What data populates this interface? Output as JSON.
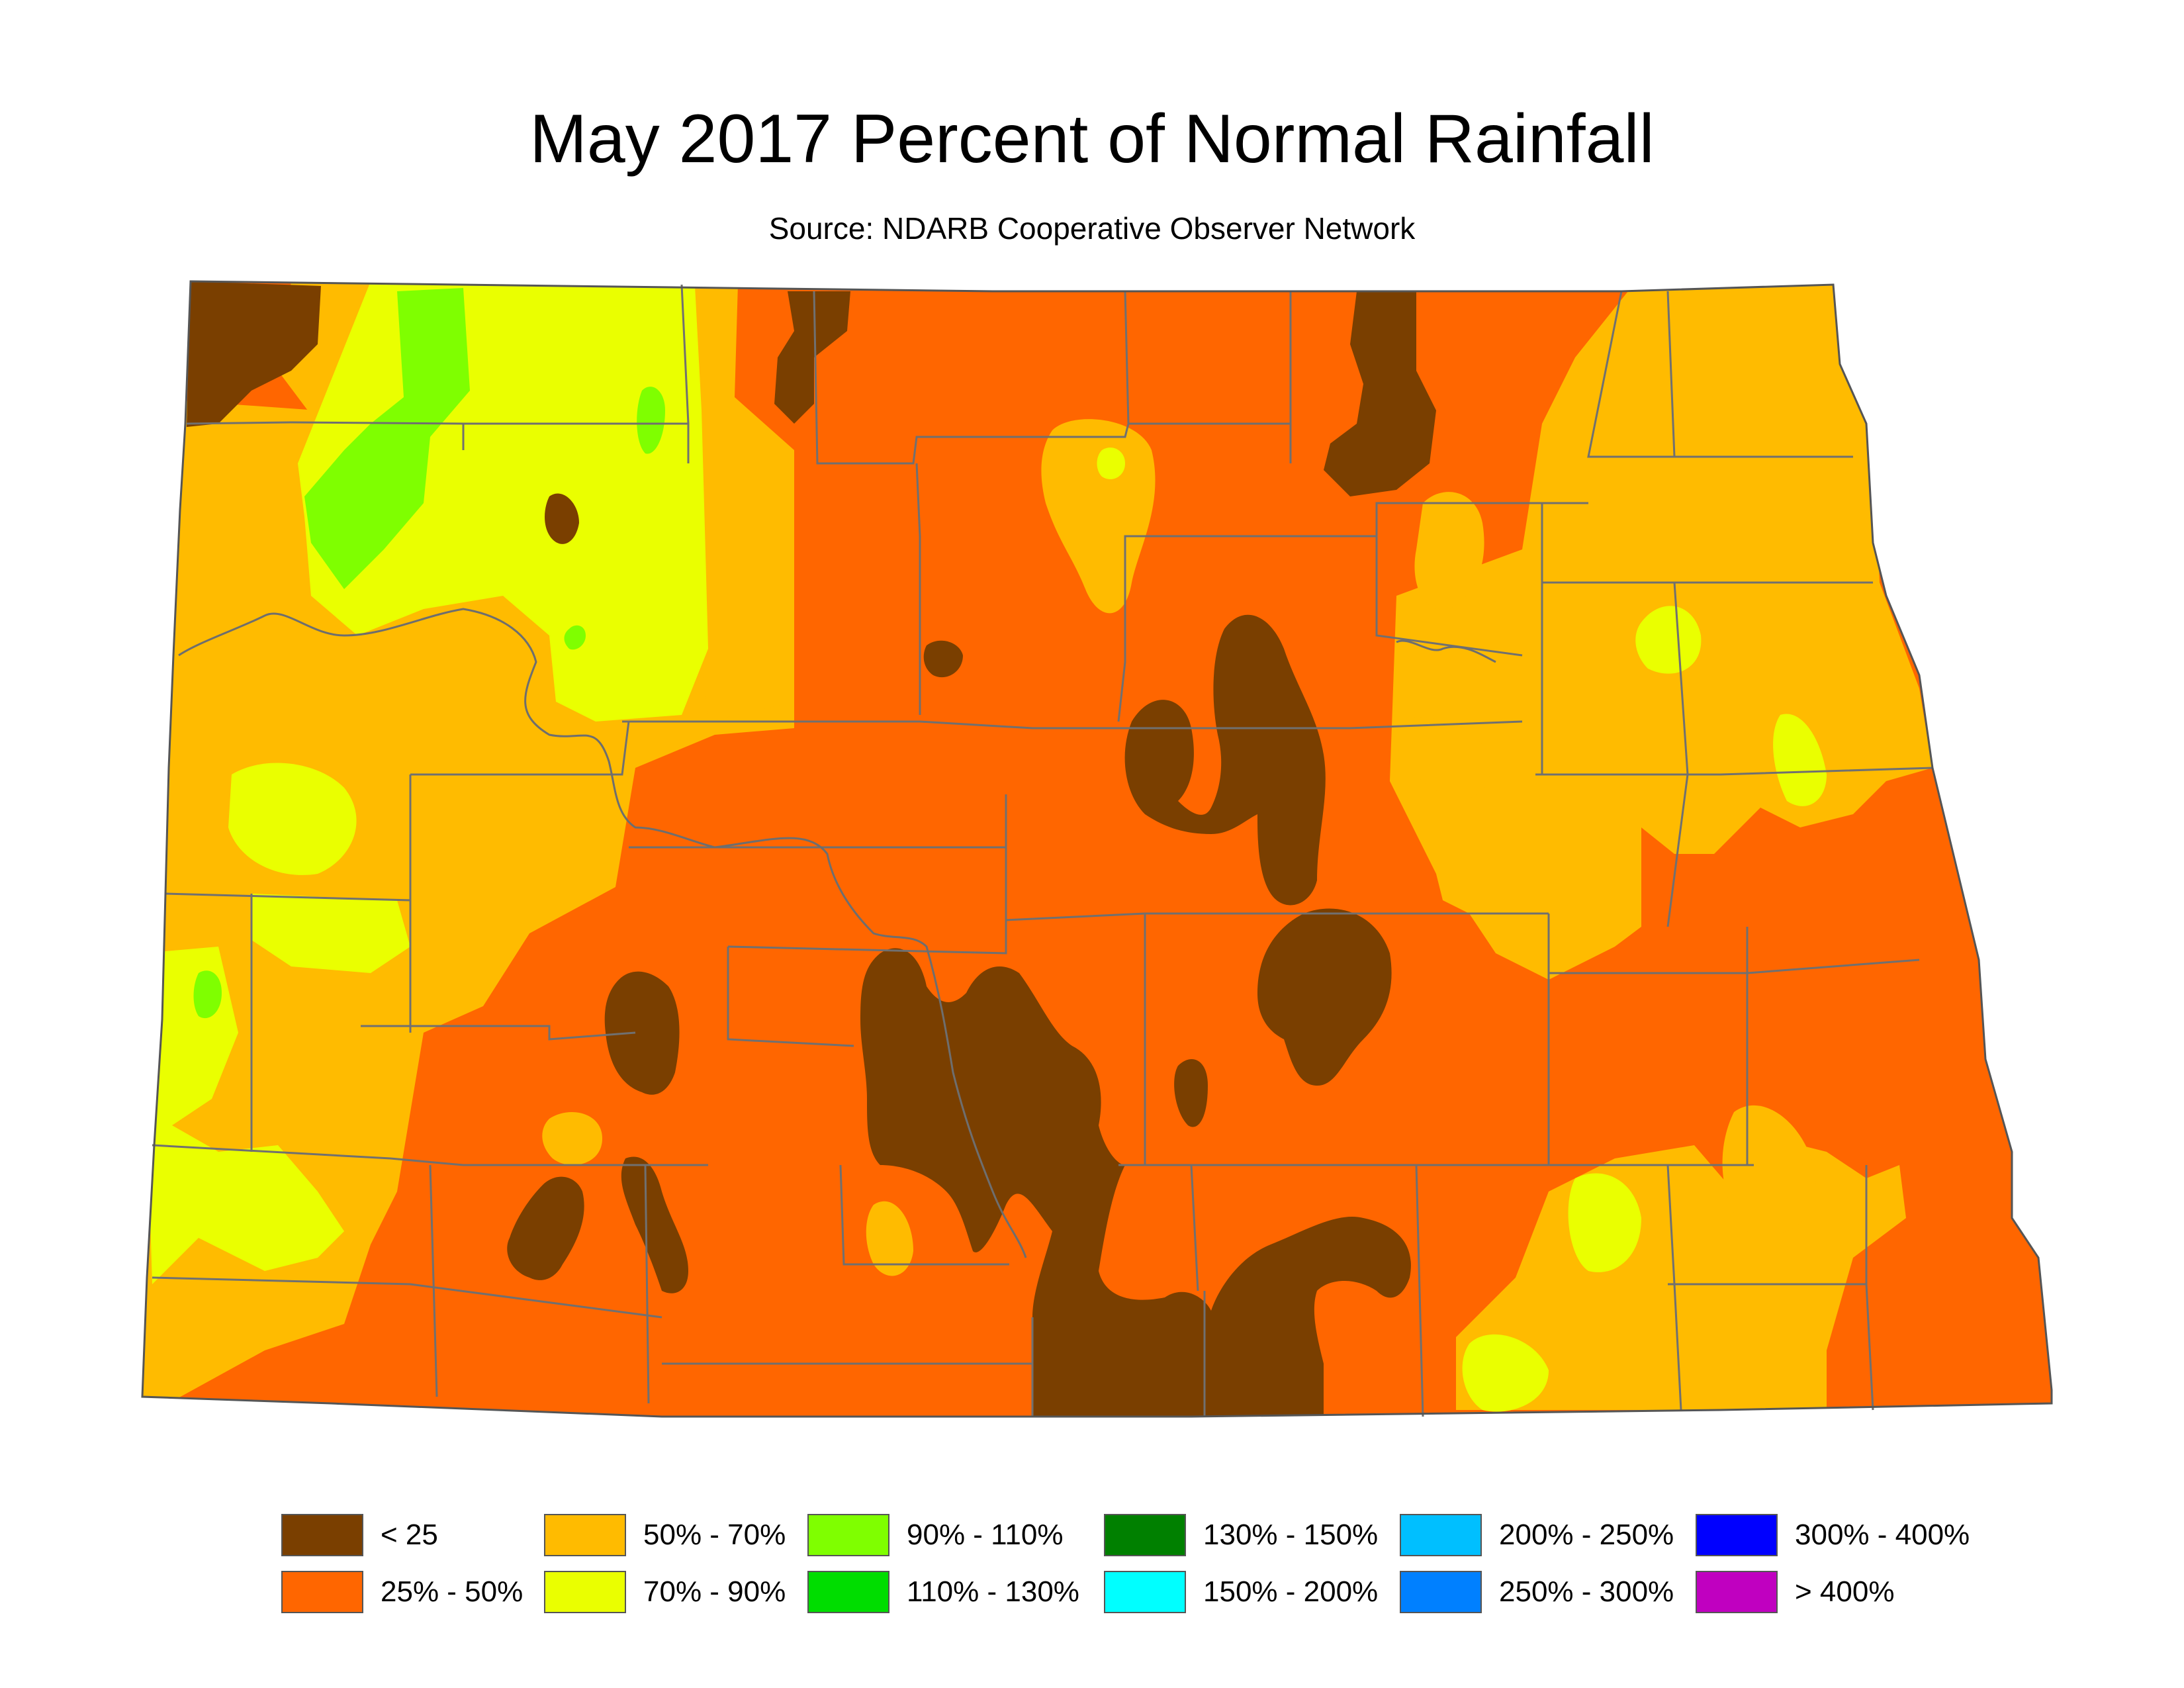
{
  "map": {
    "title": "May 2017 Percent of Normal Rainfall",
    "subtitle": "Source: NDARB Cooperative Observer Network"
  },
  "colors": {
    "lt25": "#7a3f00",
    "p25_50": "#ff6600",
    "p50_70": "#ffbb00",
    "p70_90": "#eaff00",
    "p90_110": "#7fff00",
    "county_line": "#707070",
    "river": "#707070"
  },
  "legend": [
    {
      "label": "< 25",
      "color": "#7a3f00"
    },
    {
      "label": "25% - 50%",
      "color": "#ff6600"
    },
    {
      "label": "50% - 70%",
      "color": "#ffbb00"
    },
    {
      "label": "70% - 90%",
      "color": "#eaff00"
    },
    {
      "label": "90% - 110%",
      "color": "#7fff00"
    },
    {
      "label": "110% - 130%",
      "color": "#00dd00"
    },
    {
      "label": "130% - 150%",
      "color": "#008000"
    },
    {
      "label": "150% - 200%",
      "color": "#00ffff"
    },
    {
      "label": "200% - 250%",
      "color": "#00bfff"
    },
    {
      "label": "250% - 300%",
      "color": "#0080ff"
    },
    {
      "label": "300% - 400%",
      "color": "#0000ff"
    },
    {
      "label": "> 400%",
      "color": "#c000c0"
    }
  ]
}
